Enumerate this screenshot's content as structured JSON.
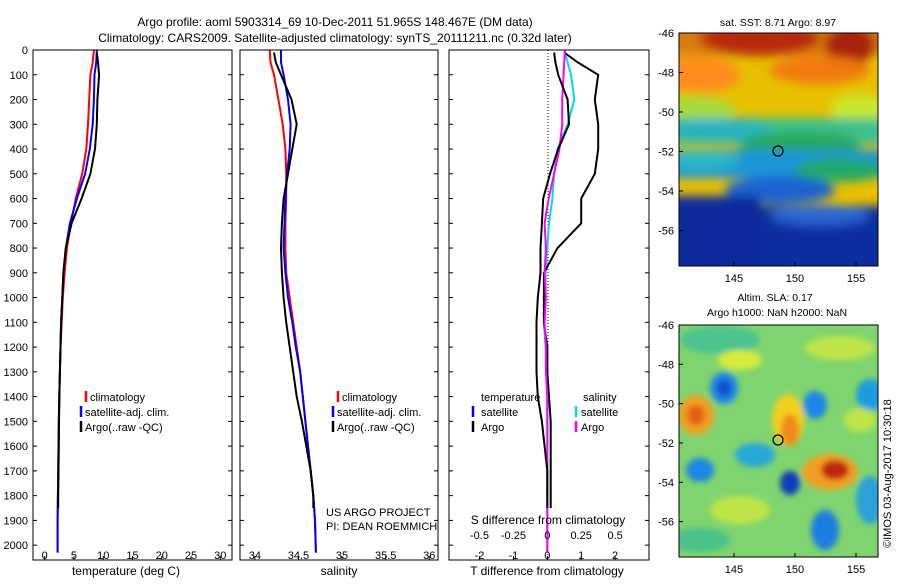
{
  "header": {
    "line1": "Argo profile: aoml 5903314_69 10-Dec-2011 51.965S 148.467E (DM data)",
    "line2": "Climatology: CARS2009. Satellite-adjusted climatology: synTS_20111211.nc (0.32d later)"
  },
  "colors": {
    "climatology": "#ff0000",
    "satellite": "#0000ff",
    "argo": "#000000",
    "temp_sat_diff": "#00dddd",
    "sal_sat_diff": "#ff00ff"
  },
  "panels": {
    "temperature": {
      "xlabel": "temperature (deg C)",
      "xticks": [
        "0",
        "5",
        "10",
        "15",
        "20",
        "25",
        "30"
      ],
      "legend": [
        "climatology",
        "satellite-adj. clim.",
        "Argo(..raw -QC)"
      ]
    },
    "salinity": {
      "xlabel": "salinity",
      "xticks": [
        "34",
        "34.5",
        "35",
        "35.5",
        "36"
      ],
      "legend": [
        "climatology",
        "satellite-adj. clim.",
        "Argo(..raw -QC)"
      ],
      "project_line1": "US ARGO PROJECT",
      "project_line2": "PI: DEAN ROEMMICH"
    },
    "difference": {
      "legend_temp_title": "temperature",
      "legend_sal_title": "salinity",
      "legend_sat": "satellite",
      "legend_argo": "Argo",
      "s_label": "S difference from climatology",
      "s_ticks": [
        "-0.5",
        "-0.25",
        "0",
        "0.25",
        "0.5"
      ],
      "t_label": "T difference from climatology",
      "t_ticks": [
        "-2",
        "-1",
        "0",
        "1",
        "2"
      ]
    },
    "depth_ticks": [
      "0",
      "100",
      "200",
      "300",
      "400",
      "500",
      "600",
      "700",
      "800",
      "900",
      "1000",
      "1100",
      "1200",
      "1300",
      "1400",
      "1500",
      "1600",
      "1700",
      "1800",
      "1900",
      "2000"
    ]
  },
  "maps": {
    "sst_title": "sat. SST: 8.71  Argo: 8.97",
    "sla_title1": "Altim. SLA: 0.17",
    "sla_title2": "Argo h1000: NaN h2000: NaN",
    "lat_ticks": [
      "-46",
      "-48",
      "-50",
      "-52",
      "-54",
      "-56"
    ],
    "lon_ticks": [
      "145",
      "150",
      "155"
    ],
    "credit": "©IMOS 03-Aug-2017 10:30:18"
  },
  "chart_data": [
    {
      "type": "line",
      "name": "temperature profile",
      "xlabel": "temperature (deg C)",
      "ylabel": "",
      "xlim": [
        -2,
        32
      ],
      "ylim": [
        2060,
        0
      ],
      "series": [
        {
          "name": "climatology",
          "color": "#ff0000",
          "x": [
            8.4,
            8.2,
            7.8,
            7.6,
            7.4,
            7.1,
            6.4,
            5.3,
            4.5,
            3.8,
            3.4,
            3.1,
            2.9,
            2.7,
            2.6,
            2.5,
            2.4,
            2.35,
            2.3,
            2.25,
            2.2,
            2.2
          ],
          "y": [
            0,
            50,
            100,
            200,
            300,
            400,
            500,
            600,
            700,
            800,
            900,
            1000,
            1100,
            1200,
            1300,
            1400,
            1500,
            1600,
            1700,
            1800,
            1900,
            2030
          ]
        },
        {
          "name": "satellite-adj. clim.",
          "color": "#0000ff",
          "x": [
            8.9,
            8.8,
            8.5,
            8.4,
            8.2,
            7.7,
            6.9,
            5.5,
            4.3,
            3.6,
            3.2,
            3.0,
            2.8,
            2.7,
            2.6,
            2.5,
            2.4,
            2.35,
            2.3,
            2.25,
            2.2,
            2.2
          ],
          "y": [
            0,
            50,
            100,
            200,
            300,
            400,
            500,
            600,
            700,
            800,
            900,
            1000,
            1100,
            1200,
            1300,
            1400,
            1500,
            1600,
            1700,
            1800,
            1900,
            2030
          ]
        },
        {
          "name": "Argo(..raw -QC)",
          "color": "#000000",
          "x": [
            8.9,
            9.1,
            9.3,
            9.0,
            8.9,
            8.6,
            7.8,
            6.3,
            4.6,
            3.6,
            3.2,
            3.0,
            2.8,
            2.7,
            2.6,
            2.5,
            2.45,
            2.4,
            2.35,
            2.3,
            2.3
          ],
          "y": [
            10,
            50,
            100,
            200,
            300,
            400,
            500,
            600,
            700,
            800,
            900,
            1000,
            1100,
            1200,
            1300,
            1400,
            1500,
            1600,
            1700,
            1800,
            1850
          ]
        }
      ]
    },
    {
      "type": "line",
      "name": "salinity profile",
      "xlabel": "salinity",
      "ylabel": "",
      "xlim": [
        33.83,
        36.1
      ],
      "ylim": [
        2060,
        0
      ],
      "series": [
        {
          "name": "climatology",
          "color": "#ff0000",
          "x": [
            34.17,
            34.18,
            34.22,
            34.27,
            34.32,
            34.35,
            34.36,
            34.36,
            34.35,
            34.35,
            34.36,
            34.4,
            34.44,
            34.48,
            34.52,
            34.55,
            34.58,
            34.61,
            34.64,
            34.67,
            34.69,
            34.7
          ],
          "y": [
            0,
            50,
            100,
            200,
            300,
            400,
            500,
            600,
            700,
            800,
            900,
            1000,
            1100,
            1200,
            1300,
            1400,
            1500,
            1600,
            1700,
            1800,
            1900,
            2030
          ]
        },
        {
          "name": "satellite-adj. clim.",
          "color": "#0000ff",
          "x": [
            34.3,
            34.3,
            34.33,
            34.38,
            34.41,
            34.4,
            34.37,
            34.35,
            34.34,
            34.33,
            34.35,
            34.38,
            34.43,
            34.47,
            34.52,
            34.55,
            34.58,
            34.61,
            34.64,
            34.67,
            34.69,
            34.7
          ],
          "y": [
            0,
            50,
            100,
            200,
            300,
            400,
            500,
            600,
            700,
            800,
            900,
            1000,
            1100,
            1200,
            1300,
            1400,
            1500,
            1600,
            1700,
            1800,
            1900,
            2030
          ]
        },
        {
          "name": "Argo(..raw -QC)",
          "color": "#000000",
          "x": [
            34.22,
            34.24,
            34.3,
            34.42,
            34.48,
            34.43,
            34.38,
            34.33,
            34.31,
            34.3,
            34.31,
            34.33,
            34.36,
            34.4,
            34.44,
            34.48,
            34.54,
            34.59,
            34.64,
            34.67,
            34.67
          ],
          "y": [
            10,
            50,
            100,
            200,
            300,
            400,
            500,
            600,
            700,
            800,
            900,
            1000,
            1100,
            1200,
            1300,
            1400,
            1500,
            1600,
            1700,
            1800,
            1850
          ]
        }
      ]
    },
    {
      "type": "line",
      "name": "difference from climatology",
      "xlabel": "T difference from climatology",
      "x2label": "S difference from climatology",
      "t_xlim": [
        -2.9,
        3.0
      ],
      "s_xlim": [
        -0.725,
        0.75
      ],
      "ylim": [
        2060,
        0
      ],
      "series": [
        {
          "name": "satellite",
          "quantity": "temperature",
          "color": "#00dddd",
          "x": [
            0.5,
            0.6,
            0.7,
            0.8,
            0.6,
            0.3,
            0.2,
            0.15,
            0.05,
            0.0,
            -0.05,
            -0.05,
            -0.1,
            -0.05,
            0.0,
            0.0,
            0.0,
            0.0,
            0.0,
            0.0,
            0.0
          ],
          "y": [
            0,
            50,
            100,
            200,
            300,
            400,
            500,
            600,
            700,
            800,
            900,
            1000,
            1100,
            1200,
            1300,
            1400,
            1500,
            1600,
            1700,
            1800,
            2030
          ]
        },
        {
          "name": "Argo",
          "quantity": "temperature",
          "color": "#000000",
          "x": [
            0.5,
            0.9,
            1.5,
            1.4,
            1.5,
            1.5,
            1.4,
            1.0,
            1.0,
            0.3,
            -0.1,
            -0.1,
            -0.1,
            0.0,
            0.0,
            0.05,
            0.1,
            0.1,
            0.1,
            0.1
          ],
          "y": [
            10,
            50,
            100,
            200,
            300,
            400,
            500,
            600,
            700,
            800,
            900,
            1000,
            1100,
            1200,
            1300,
            1400,
            1500,
            1600,
            1700,
            1850
          ]
        },
        {
          "name": "satellite",
          "quantity": "salinity",
          "color": "#ff00ff",
          "x": [
            0.13,
            0.12,
            0.11,
            0.11,
            0.09,
            0.05,
            0.01,
            -0.02,
            -0.01,
            -0.02,
            -0.01,
            -0.02,
            -0.01,
            -0.01,
            0.0,
            0.0,
            0.0,
            0.0,
            0.0,
            0.0
          ],
          "y": [
            0,
            100,
            200,
            300,
            400,
            500,
            600,
            700,
            800,
            900,
            1000,
            1100,
            1200,
            1300,
            1400,
            1500,
            1600,
            1700,
            1800,
            2030
          ]
        },
        {
          "name": "Argo",
          "quantity": "salinity",
          "color": "#000000",
          "x": [
            0.05,
            0.06,
            0.08,
            0.15,
            0.16,
            0.08,
            0.02,
            -0.03,
            -0.04,
            -0.05,
            -0.05,
            -0.07,
            -0.08,
            -0.08,
            -0.08,
            -0.07,
            -0.04,
            -0.02,
            0.0,
            0.0,
            0.0
          ],
          "y": [
            10,
            50,
            100,
            200,
            300,
            400,
            500,
            600,
            700,
            800,
            900,
            1000,
            1100,
            1200,
            1300,
            1400,
            1500,
            1600,
            1700,
            1800,
            1850
          ]
        }
      ]
    },
    {
      "type": "heatmap",
      "name": "satellite SST map",
      "title": "sat. SST: 8.71  Argo: 8.97",
      "xlim": [
        140.5,
        156.8
      ],
      "ylim": [
        -57.8,
        -46
      ],
      "marker": {
        "lon": 148.467,
        "lat": -51.965
      }
    },
    {
      "type": "heatmap",
      "name": "altimeter SLA map",
      "title": "Altim. SLA: 0.17 / Argo h1000: NaN h2000: NaN",
      "xlim": [
        140.5,
        156.8
      ],
      "ylim": [
        -57.8,
        -46
      ],
      "marker": {
        "lon": 148.467,
        "lat": -51.965
      }
    }
  ]
}
